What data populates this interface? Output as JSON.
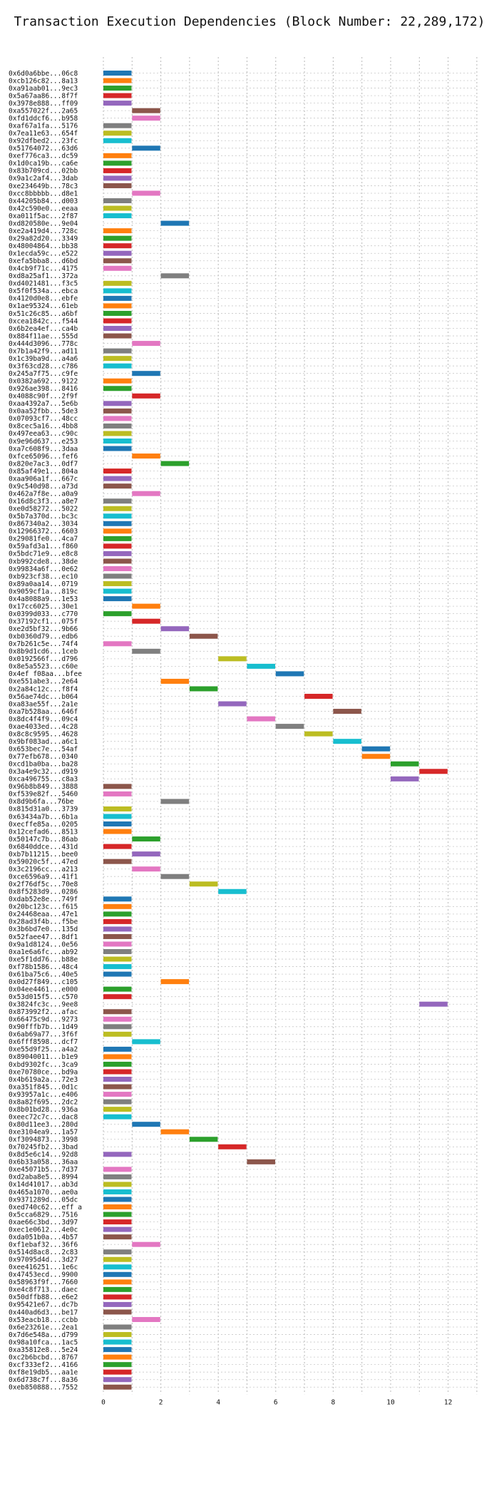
{
  "chart_data": {
    "type": "bar",
    "orientation": "horizontal-gantt",
    "title": "Transaction Execution Dependencies (Block Number: 22,289,172)",
    "xlabel": "",
    "ylabel": "",
    "xlim": [
      0,
      13
    ],
    "x_ticks": [
      0,
      2,
      4,
      6,
      8,
      10,
      12
    ],
    "grid": "vertical dotted at every integer",
    "legend": "none",
    "palette": [
      "#1f77b4",
      "#ff7f0e",
      "#2ca02c",
      "#d62728",
      "#9467bd",
      "#8c564b",
      "#e377c2",
      "#7f7f7f",
      "#bcbd22",
      "#17becf"
    ],
    "transactions": [
      {
        "label": "0x6d0a6bbe...06c8",
        "start": 0
      },
      {
        "label": "0xcb126c82...8a13",
        "start": 0
      },
      {
        "label": "0xa91aab01...9ec3",
        "start": 0
      },
      {
        "label": "0x5a67aa86...8f7f",
        "start": 0
      },
      {
        "label": "0x3978e888...ff09",
        "start": 0
      },
      {
        "label": "0xa557022f...2a65",
        "start": 1
      },
      {
        "label": "0xfd1ddcf6...b958",
        "start": 1
      },
      {
        "label": "0xaf67a1fa...5176",
        "start": 0
      },
      {
        "label": "0x7ea11e63...654f",
        "start": 0
      },
      {
        "label": "0x92dfbed2...23fc",
        "start": 0
      },
      {
        "label": "0x51764072...63d6",
        "start": 1
      },
      {
        "label": "0xef776ca3...dc59",
        "start": 0
      },
      {
        "label": "0x1d0ca19b...ca6e",
        "start": 0
      },
      {
        "label": "0x83b709cd...02bb",
        "start": 0
      },
      {
        "label": "0x9a1c2af4...3dab",
        "start": 0
      },
      {
        "label": "0xe234649b...78c3",
        "start": 0
      },
      {
        "label": "0xcc8bbbbb...d8e1",
        "start": 1
      },
      {
        "label": "0x44205b84...d003",
        "start": 0
      },
      {
        "label": "0x42c590e0...eeaa",
        "start": 0
      },
      {
        "label": "0xa011f5ac...2f87",
        "start": 0
      },
      {
        "label": "0xd820580e...9e04",
        "start": 2
      },
      {
        "label": "0xe2a419d4...728c",
        "start": 0
      },
      {
        "label": "0x29a82d20...3349",
        "start": 0
      },
      {
        "label": "0x48004864...bb38",
        "start": 0
      },
      {
        "label": "0x1ecda59c...e522",
        "start": 0
      },
      {
        "label": "0xefa5bba8...d6bd",
        "start": 0
      },
      {
        "label": "0x4cb9f71c...4175",
        "start": 0
      },
      {
        "label": "0xd8a25af1...372a",
        "start": 2
      },
      {
        "label": "0xd4021481...f3c5",
        "start": 0
      },
      {
        "label": "0x5f0f534a...ebca",
        "start": 0
      },
      {
        "label": "0x4120d0e8...ebfe",
        "start": 0
      },
      {
        "label": "0x1ae95324...61eb",
        "start": 0
      },
      {
        "label": "0x51c26c85...a6bf",
        "start": 0
      },
      {
        "label": "0xcea1842c...f544",
        "start": 0
      },
      {
        "label": "0x6b2ea4ef...ca4b",
        "start": 0
      },
      {
        "label": "0x884f11ae...555d",
        "start": 0
      },
      {
        "label": "0x444d3096...778c",
        "start": 1
      },
      {
        "label": "0x7b1a42f9...ad11",
        "start": 0
      },
      {
        "label": "0x1c39ba9d...a4a6",
        "start": 0
      },
      {
        "label": "0x3f63cd28...c786",
        "start": 0
      },
      {
        "label": "0x245a7f75...c9fe",
        "start": 1
      },
      {
        "label": "0x0382a692...9122",
        "start": 0
      },
      {
        "label": "0x926ae398...8416",
        "start": 0
      },
      {
        "label": "0x4088c90f...2f9f",
        "start": 1
      },
      {
        "label": "0xaa4392a7...5e6b",
        "start": 0
      },
      {
        "label": "0x0aa52fbb...5de3",
        "start": 0
      },
      {
        "label": "0x07093cf7...48cc",
        "start": 0
      },
      {
        "label": "0x8cec5a16...4bb8",
        "start": 0
      },
      {
        "label": "0x497eea63...c90c",
        "start": 0
      },
      {
        "label": "0x9e96d637...e253",
        "start": 0
      },
      {
        "label": "0xa7c608f9...3daa",
        "start": 0
      },
      {
        "label": "0xfce65096...fef6",
        "start": 1
      },
      {
        "label": "0x820e7ac3...0df7",
        "start": 2
      },
      {
        "label": "0x85af49e1...804a",
        "start": 0
      },
      {
        "label": "0xaa906a1f...667c",
        "start": 0
      },
      {
        "label": "0x9c540d98...a73d",
        "start": 0
      },
      {
        "label": "0x462a7f8e...a0a9",
        "start": 1
      },
      {
        "label": "0x16d8c3f3...a8e7",
        "start": 0
      },
      {
        "label": "0xe0d58272...5022",
        "start": 0
      },
      {
        "label": "0x5b7a370d...bc3c",
        "start": 0
      },
      {
        "label": "0x867340a2...3034",
        "start": 0
      },
      {
        "label": "0x12966372...6603",
        "start": 0
      },
      {
        "label": "0x29081fe0...4ca7",
        "start": 0
      },
      {
        "label": "0x59afd3a1...f860",
        "start": 0
      },
      {
        "label": "0x5bdc71e9...e8c8",
        "start": 0
      },
      {
        "label": "0xb992cde8...38de",
        "start": 0
      },
      {
        "label": "0x99834a6f...0e62",
        "start": 0
      },
      {
        "label": "0xb923cf38...ec10",
        "start": 0
      },
      {
        "label": "0x89a0aa14...0719",
        "start": 0
      },
      {
        "label": "0x9059cf1a...819c",
        "start": 0
      },
      {
        "label": "0x4a8088a9...1e53",
        "start": 0
      },
      {
        "label": "0x17cc6025...30e1",
        "start": 1
      },
      {
        "label": "0x0399d033...c770",
        "start": 0
      },
      {
        "label": "0x37192cf1...075f",
        "start": 1
      },
      {
        "label": "0xe2d5bf32...9b66",
        "start": 2
      },
      {
        "label": "0xb0360d79...edb6",
        "start": 3
      },
      {
        "label": "0x7b261c5e...74f4",
        "start": 0
      },
      {
        "label": "0x8b9d1cd6...1ceb",
        "start": 1
      },
      {
        "label": "0x0192566f...d796",
        "start": 4
      },
      {
        "label": "0x8e5a5523...c60e",
        "start": 5
      },
      {
        "label": "0x4ef f08aa...bfee",
        "start": 6
      },
      {
        "label": "0xe551abe3...2e64",
        "start": 2
      },
      {
        "label": "0x2a84c12c...f8f4",
        "start": 3
      },
      {
        "label": "0x56ae74dc...b064",
        "start": 7
      },
      {
        "label": "0xa83ae55f...2a1e",
        "start": 4
      },
      {
        "label": "0xa7b528aa...646f",
        "start": 8
      },
      {
        "label": "0x8dc4f4f9...09c4",
        "start": 5
      },
      {
        "label": "0xae4033ed...4c28",
        "start": 6
      },
      {
        "label": "0x8c8c9595...4628",
        "start": 7
      },
      {
        "label": "0x9bf083ad...a6c1",
        "start": 8
      },
      {
        "label": "0x653bec7e...54af",
        "start": 9
      },
      {
        "label": "0x77efb678...0340",
        "start": 9
      },
      {
        "label": "0xcd1ba0ba...ba28",
        "start": 10
      },
      {
        "label": "0x3a4e9c32...d919",
        "start": 11
      },
      {
        "label": "0xca496755...c8a3",
        "start": 10
      },
      {
        "label": "0x96b8b849...3888",
        "start": 0
      },
      {
        "label": "0xf539e82f...5460",
        "start": 0
      },
      {
        "label": "0x8d9b6fa...76be",
        "start": 2
      },
      {
        "label": "0x815d31a0...3739",
        "start": 0
      },
      {
        "label": "0x63434a7b...6b1a",
        "start": 0
      },
      {
        "label": "0xecffe85a...0205",
        "start": 0
      },
      {
        "label": "0x12cefad6...8513",
        "start": 0
      },
      {
        "label": "0x50147c7b...86ab",
        "start": 1
      },
      {
        "label": "0x6840ddce...431d",
        "start": 0
      },
      {
        "label": "0xb7b11215...bee0",
        "start": 1
      },
      {
        "label": "0x59020c5f...47ed",
        "start": 0
      },
      {
        "label": "0x3c2196cc...a213",
        "start": 1
      },
      {
        "label": "0xce6596a9...41f1",
        "start": 2
      },
      {
        "label": "0x2f76df5c...70e8",
        "start": 3
      },
      {
        "label": "0x8f5283d9...0286",
        "start": 4
      },
      {
        "label": "0xdab52e8e...749f",
        "start": 0
      },
      {
        "label": "0x20bc123c...f615",
        "start": 0
      },
      {
        "label": "0x24468eaa...47e1",
        "start": 0
      },
      {
        "label": "0x28ad3f4b...f5be",
        "start": 0
      },
      {
        "label": "0x3b6bd7e0...135d",
        "start": 0
      },
      {
        "label": "0x52faee47...8df1",
        "start": 0
      },
      {
        "label": "0x9a1d8124...0e56",
        "start": 0
      },
      {
        "label": "0xa1e6a6fc...ab92",
        "start": 0
      },
      {
        "label": "0xe5f1dd76...b88e",
        "start": 0
      },
      {
        "label": "0xf78b1586...48c4",
        "start": 0
      },
      {
        "label": "0x61ba75c6...40e5",
        "start": 0
      },
      {
        "label": "0x0d27f849...c105",
        "start": 2
      },
      {
        "label": "0x04ee4461...e000",
        "start": 0
      },
      {
        "label": "0x53d015f5...c570",
        "start": 0
      },
      {
        "label": "0x3824fc3c...9ee8",
        "start": 11
      },
      {
        "label": "0x873992f2...afac",
        "start": 0
      },
      {
        "label": "0x66475c9d...9273",
        "start": 0
      },
      {
        "label": "0x90fffb7b...1d49",
        "start": 0
      },
      {
        "label": "0x6ab69a77...3f6f",
        "start": 0
      },
      {
        "label": "0x6fff8598...dcf7",
        "start": 1
      },
      {
        "label": "0xe55d9f25...a4a2",
        "start": 0
      },
      {
        "label": "0x89040011...b1e9",
        "start": 0
      },
      {
        "label": "0xbd9302fc...3ca9",
        "start": 0
      },
      {
        "label": "0xe70780ce...bd9a",
        "start": 0
      },
      {
        "label": "0x4b619a2a...72e3",
        "start": 0
      },
      {
        "label": "0xa351f845...0d1c",
        "start": 0
      },
      {
        "label": "0x93957a1c...e406",
        "start": 0
      },
      {
        "label": "0x8a82f695...2dc2",
        "start": 0
      },
      {
        "label": "0x8b01bd28...936a",
        "start": 0
      },
      {
        "label": "0xeec72c7c...dac8",
        "start": 0
      },
      {
        "label": "0x80d11ee3...280d",
        "start": 1
      },
      {
        "label": "0xe3104ea9...1a57",
        "start": 2
      },
      {
        "label": "0xf3094873...3998",
        "start": 3
      },
      {
        "label": "0x70245fb2...3bad",
        "start": 4
      },
      {
        "label": "0x8d5e6c14...92d8",
        "start": 0
      },
      {
        "label": "0x6b33a058...36aa",
        "start": 5
      },
      {
        "label": "0xe45071b5...7d37",
        "start": 0
      },
      {
        "label": "0xd2aba8e5...8994",
        "start": 0
      },
      {
        "label": "0x14d41017...ab3d",
        "start": 0
      },
      {
        "label": "0x465a1070...ae0a",
        "start": 0
      },
      {
        "label": "0x9371289d...05dc",
        "start": 0
      },
      {
        "label": "0xed740c62...eff a",
        "start": 0
      },
      {
        "label": "0x5cca6829...7516",
        "start": 0
      },
      {
        "label": "0xae66c3bd...3d97",
        "start": 0
      },
      {
        "label": "0xec1e0612...4e0c",
        "start": 0
      },
      {
        "label": "0xda051b0a...4b57",
        "start": 0
      },
      {
        "label": "0xf1ebaf32...36f6",
        "start": 1
      },
      {
        "label": "0x514d8ac8...2c83",
        "start": 0
      },
      {
        "label": "0x97095d4d...3d27",
        "start": 0
      },
      {
        "label": "0xee416251...1e6c",
        "start": 0
      },
      {
        "label": "0x47453ecd...9900",
        "start": 0
      },
      {
        "label": "0x58963f9f...7660",
        "start": 0
      },
      {
        "label": "0xe4c8f713...daec",
        "start": 0
      },
      {
        "label": "0x50dffb88...e6e2",
        "start": 0
      },
      {
        "label": "0x95421e67...dc7b",
        "start": 0
      },
      {
        "label": "0x440ad6d3...be17",
        "start": 0
      },
      {
        "label": "0x53eacb18...ccbb",
        "start": 1
      },
      {
        "label": "0x6e23261e...2ea1",
        "start": 0
      },
      {
        "label": "0x7d6e548a...d799",
        "start": 0
      },
      {
        "label": "0x98a10fca...1ac5",
        "start": 0
      },
      {
        "label": "0xa35812e8...5e24",
        "start": 0
      },
      {
        "label": "0xc2b6bcbd...8767",
        "start": 0
      },
      {
        "label": "0xcf333ef2...4166",
        "start": 0
      },
      {
        "label": "0xf8e19db5...aa1e",
        "start": 0
      },
      {
        "label": "0x6d738c7f...8a36",
        "start": 0
      },
      {
        "label": "0xeb850888...7552",
        "start": 0
      }
    ]
  }
}
